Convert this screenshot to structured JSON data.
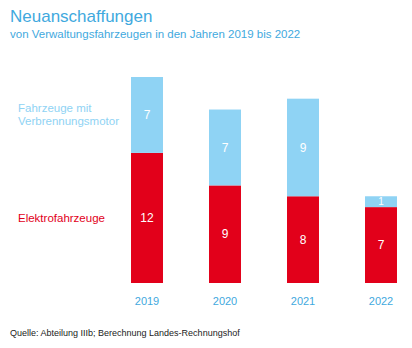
{
  "chart_data": {
    "type": "bar",
    "title": "Neuanschaffungen",
    "subtitle": "von Verwaltungsfahrzeugen in den Jahren 2019 bis 2022",
    "categories": [
      "2019",
      "2020",
      "2021",
      "2022"
    ],
    "series": [
      {
        "name": "Elektrofahrzeuge",
        "color": "#e2001a",
        "values": [
          12,
          9,
          8,
          7
        ]
      },
      {
        "name": "Fahrzeuge mit Verbrennungsmotor",
        "color": "#8fd3f4",
        "values": [
          7,
          7,
          9,
          1
        ]
      }
    ],
    "stacked": true,
    "data_labels": true,
    "tick_labels": "x",
    "source": "Quelle: Abteilung IIIb; Berechnung Landes-Rechnungshof"
  }
}
